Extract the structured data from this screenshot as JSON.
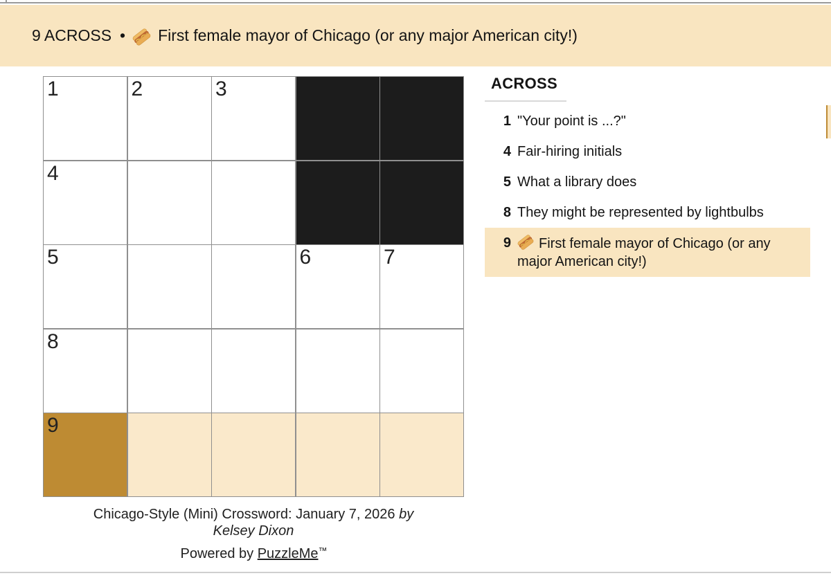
{
  "banner": {
    "clue_ref": "9 ACROSS",
    "separator": "•",
    "icon": "hotdog-icon",
    "text": "First female mayor of Chicago (or any major American city!)"
  },
  "grid": {
    "rows": [
      [
        {
          "n": "1",
          "t": "w"
        },
        {
          "n": "2",
          "t": "w"
        },
        {
          "n": "3",
          "t": "w"
        },
        {
          "t": "b"
        },
        {
          "t": "b"
        }
      ],
      [
        {
          "n": "4",
          "t": "w"
        },
        {
          "t": "w"
        },
        {
          "t": "w"
        },
        {
          "t": "b"
        },
        {
          "t": "b"
        }
      ],
      [
        {
          "n": "5",
          "t": "w"
        },
        {
          "t": "w"
        },
        {
          "t": "w"
        },
        {
          "n": "6",
          "t": "w"
        },
        {
          "n": "7",
          "t": "w"
        }
      ],
      [
        {
          "n": "8",
          "t": "w"
        },
        {
          "t": "w"
        },
        {
          "t": "w"
        },
        {
          "t": "w"
        },
        {
          "t": "w"
        }
      ],
      [
        {
          "n": "9",
          "t": "sel"
        },
        {
          "t": "hl"
        },
        {
          "t": "hl"
        },
        {
          "t": "hl"
        },
        {
          "t": "hl"
        }
      ]
    ]
  },
  "clues": {
    "section_title": "ACROSS",
    "across": [
      {
        "num": "1",
        "text": "\"Your point is ...?\""
      },
      {
        "num": "4",
        "text": "Fair-hiring initials"
      },
      {
        "num": "5",
        "text": "What a library does"
      },
      {
        "num": "8",
        "text": "They might be represented by lightbulbs"
      },
      {
        "num": "9",
        "text": "First female mayor of Chicago (or any major American city!)",
        "icon": "hotdog-icon",
        "highlighted": true
      }
    ]
  },
  "attribution": {
    "title": "Chicago-Style (Mini) Crossword: January 7, 2026",
    "by_word": "by",
    "author": "Kelsey Dixon",
    "powered_by": "Powered by",
    "brand": "PuzzleMe",
    "trademark": "™"
  },
  "colors": {
    "banner_bg": "#F9E5C0",
    "clue_highlight_bg": "#F9E5C0",
    "row_highlight_cell": "#FAE9CB",
    "selected_cell": "#BE8B33",
    "black_cell": "#1C1C1C",
    "grid_line": "#8F8F8F",
    "text": "#141414"
  }
}
